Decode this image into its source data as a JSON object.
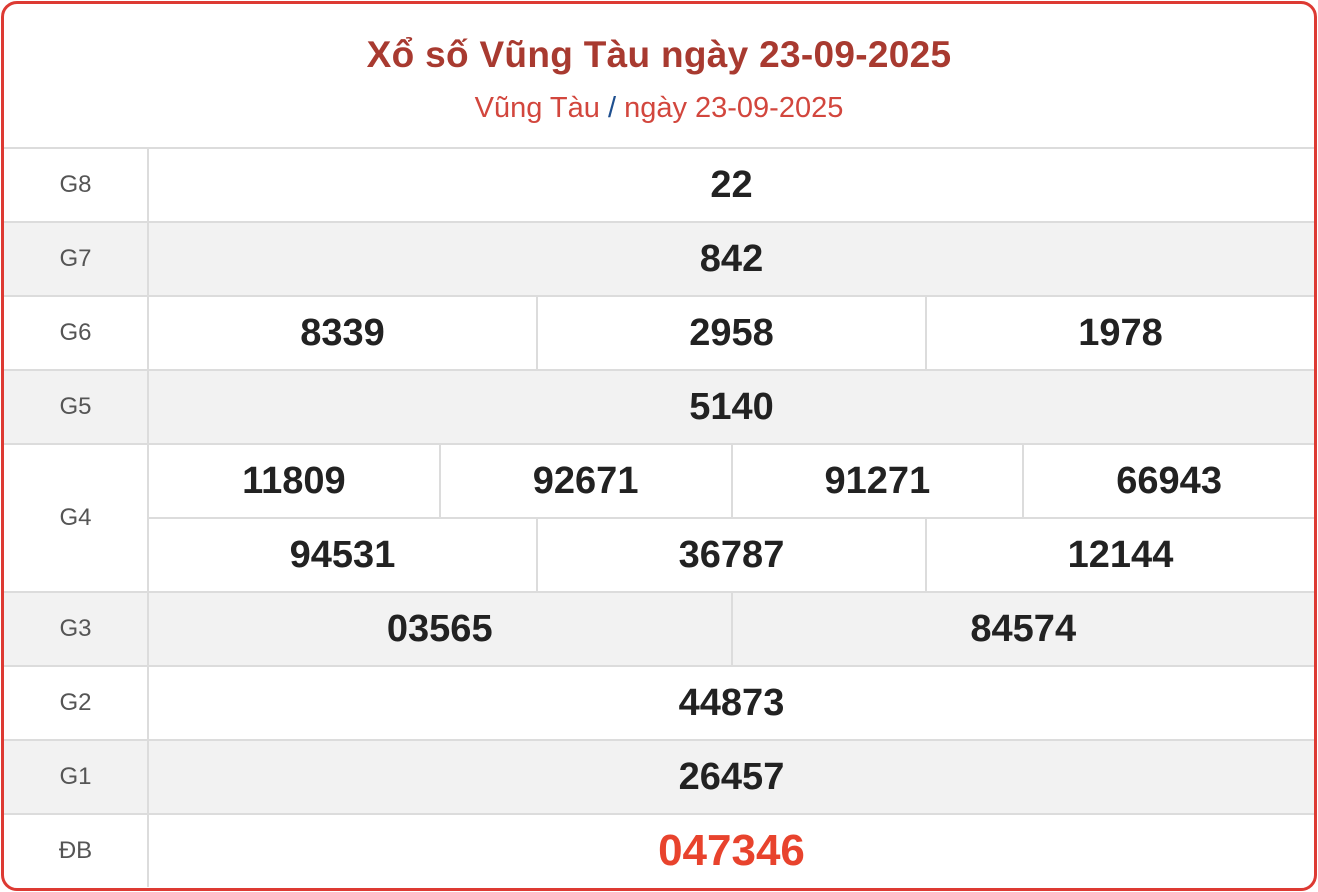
{
  "header": {
    "title": "Xổ số Vũng Tàu ngày 23-09-2025",
    "breadcrumb": {
      "province": "Vũng Tàu",
      "separator": "/",
      "date": "ngày 23-09-2025"
    }
  },
  "colors": {
    "border": "#dd3a33",
    "title": "#a83a30",
    "special": "#e8432d"
  },
  "prizes": [
    {
      "label": "G8",
      "rows": [
        [
          "22"
        ]
      ]
    },
    {
      "label": "G7",
      "rows": [
        [
          "842"
        ]
      ]
    },
    {
      "label": "G6",
      "rows": [
        [
          "8339",
          "2958",
          "1978"
        ]
      ]
    },
    {
      "label": "G5",
      "rows": [
        [
          "5140"
        ]
      ]
    },
    {
      "label": "G4",
      "rows": [
        [
          "11809",
          "92671",
          "91271",
          "66943"
        ],
        [
          "94531",
          "36787",
          "12144"
        ]
      ]
    },
    {
      "label": "G3",
      "rows": [
        [
          "03565",
          "84574"
        ]
      ]
    },
    {
      "label": "G2",
      "rows": [
        [
          "44873"
        ]
      ]
    },
    {
      "label": "G1",
      "rows": [
        [
          "26457"
        ]
      ]
    },
    {
      "label": "ĐB",
      "rows": [
        [
          "047346"
        ]
      ]
    }
  ]
}
